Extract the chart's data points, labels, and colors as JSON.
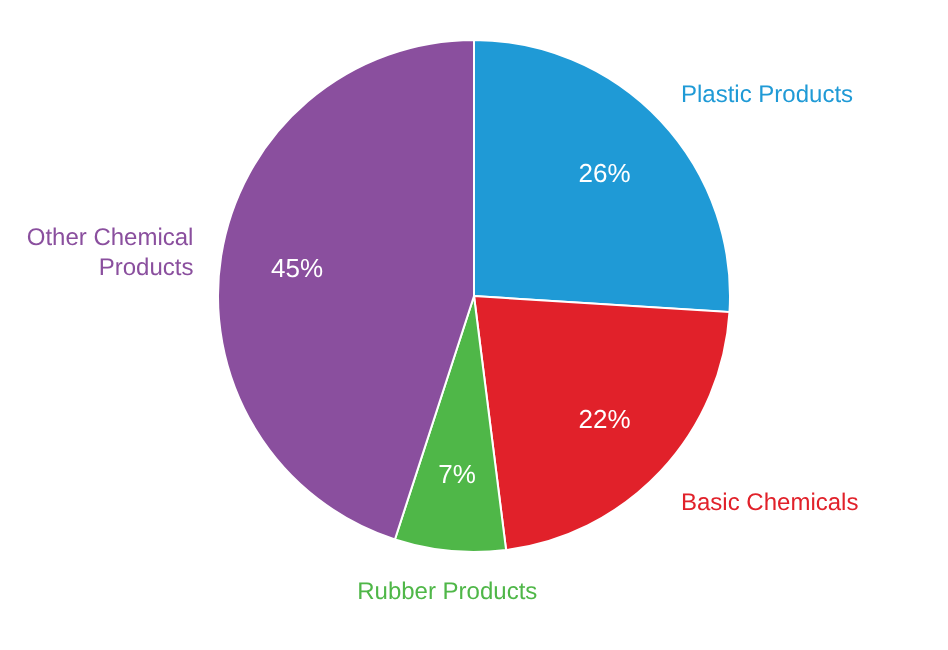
{
  "chart_data": {
    "type": "pie",
    "categories": [
      "Plastic Products",
      "Basic Chemicals",
      "Rubber Products",
      "Other Chemical Products"
    ],
    "values": [
      26,
      22,
      7,
      45
    ],
    "colors": [
      "#1f9ad6",
      "#e1212a",
      "#4fb748",
      "#8a4f9e"
    ],
    "value_labels": [
      "26%",
      "22%",
      "7%",
      "45%"
    ]
  }
}
